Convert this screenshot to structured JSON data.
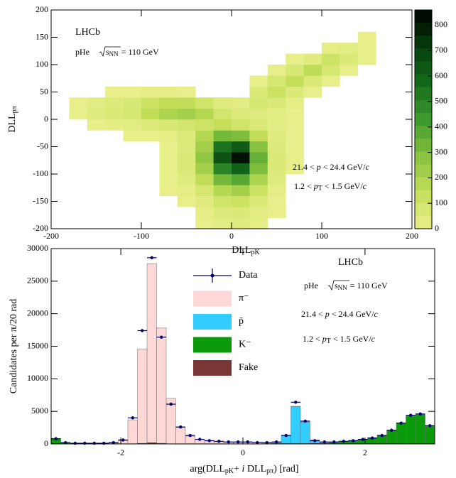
{
  "chart_data": [
    {
      "type": "heatmap",
      "xlabel": {
        "main": "DLL",
        "sub": "pK"
      },
      "ylabel": {
        "main": "DLL",
        "sub": "pπ"
      },
      "xlim": [
        -200,
        200
      ],
      "ylim": [
        -200,
        200
      ],
      "xticks": [
        -200,
        -100,
        0,
        100,
        200
      ],
      "yticks": [
        -200,
        -150,
        -100,
        -50,
        0,
        50,
        100,
        150,
        200
      ],
      "xbins": [
        -200,
        -180,
        -160,
        -140,
        -120,
        -100,
        -80,
        -60,
        -40,
        -20,
        0,
        20,
        40,
        60,
        80,
        100,
        120,
        140,
        160,
        180,
        200
      ],
      "ybins": [
        -200,
        -180,
        -160,
        -140,
        -120,
        -100,
        -80,
        -60,
        -40,
        -20,
        0,
        20,
        40,
        60,
        80,
        100,
        120,
        140,
        160,
        180,
        200
      ],
      "z": [
        [
          0,
          0,
          0,
          0,
          0,
          0,
          0,
          0,
          10,
          30,
          40,
          20,
          0,
          0,
          0,
          0,
          0,
          0,
          0,
          0
        ],
        [
          0,
          0,
          0,
          0,
          0,
          0,
          0,
          0,
          20,
          50,
          60,
          30,
          5,
          0,
          0,
          0,
          0,
          0,
          0,
          0
        ],
        [
          0,
          0,
          0,
          0,
          0,
          0,
          0,
          10,
          40,
          100,
          120,
          60,
          10,
          0,
          0,
          0,
          0,
          0,
          0,
          0
        ],
        [
          0,
          0,
          0,
          0,
          0,
          0,
          5,
          20,
          80,
          180,
          220,
          120,
          20,
          0,
          0,
          0,
          0,
          0,
          0,
          0
        ],
        [
          0,
          0,
          0,
          0,
          0,
          0,
          10,
          40,
          150,
          320,
          380,
          200,
          40,
          0,
          0,
          0,
          0,
          0,
          0,
          0
        ],
        [
          0,
          0,
          0,
          0,
          0,
          0,
          10,
          60,
          220,
          500,
          600,
          300,
          60,
          10,
          0,
          0,
          0,
          0,
          0,
          0
        ],
        [
          0,
          0,
          0,
          0,
          0,
          0,
          10,
          60,
          260,
          650,
          820,
          350,
          60,
          10,
          0,
          0,
          0,
          0,
          0,
          0
        ],
        [
          0,
          0,
          0,
          0,
          0,
          0,
          10,
          50,
          220,
          550,
          620,
          280,
          50,
          10,
          0,
          0,
          0,
          0,
          0,
          0
        ],
        [
          0,
          0,
          0,
          0,
          5,
          10,
          20,
          50,
          180,
          320,
          300,
          150,
          40,
          10,
          0,
          0,
          0,
          0,
          0,
          0
        ],
        [
          0,
          0,
          10,
          20,
          30,
          50,
          70,
          90,
          110,
          140,
          100,
          60,
          30,
          10,
          0,
          0,
          0,
          0,
          0,
          0
        ],
        [
          0,
          10,
          40,
          60,
          80,
          150,
          200,
          220,
          180,
          90,
          50,
          40,
          30,
          10,
          0,
          0,
          0,
          0,
          0,
          0
        ],
        [
          0,
          5,
          30,
          50,
          70,
          120,
          150,
          150,
          100,
          40,
          30,
          80,
          60,
          20,
          0,
          0,
          0,
          0,
          0,
          0
        ],
        [
          0,
          0,
          0,
          5,
          10,
          20,
          20,
          10,
          0,
          0,
          0,
          60,
          120,
          60,
          10,
          0,
          0,
          0,
          0,
          0
        ],
        [
          0,
          0,
          0,
          0,
          0,
          0,
          0,
          0,
          0,
          0,
          0,
          10,
          80,
          140,
          60,
          10,
          0,
          0,
          0,
          0
        ],
        [
          0,
          0,
          0,
          0,
          0,
          0,
          0,
          0,
          0,
          0,
          0,
          0,
          10,
          70,
          160,
          80,
          10,
          0,
          0,
          0
        ],
        [
          0,
          0,
          0,
          0,
          0,
          0,
          0,
          0,
          0,
          0,
          0,
          0,
          0,
          10,
          40,
          110,
          60,
          10,
          0,
          0
        ],
        [
          0,
          0,
          0,
          0,
          0,
          0,
          0,
          0,
          0,
          0,
          0,
          0,
          0,
          0,
          0,
          20,
          30,
          10,
          0,
          0
        ],
        [
          0,
          0,
          0,
          0,
          0,
          0,
          0,
          0,
          0,
          0,
          0,
          0,
          0,
          0,
          0,
          0,
          0,
          5,
          0,
          0
        ],
        [
          0,
          0,
          0,
          0,
          0,
          0,
          0,
          0,
          0,
          0,
          0,
          0,
          0,
          0,
          0,
          0,
          0,
          0,
          0,
          0
        ],
        [
          0,
          0,
          0,
          0,
          0,
          0,
          0,
          0,
          0,
          0,
          0,
          0,
          0,
          0,
          0,
          0,
          0,
          0,
          0,
          0
        ]
      ],
      "zlim": [
        0,
        860
      ],
      "zticks": [
        0,
        100,
        200,
        300,
        400,
        500,
        600,
        700,
        800
      ],
      "colormap": [
        "#e9f08c",
        "#c5df5a",
        "#86c23e",
        "#3f9a2e",
        "#146a1c",
        "#063d0c",
        "#000000"
      ],
      "annotations": {
        "experiment": "LHCb",
        "energy": {
          "system": "pHe",
          "root": "s",
          "sub": "NN",
          "value": "= 110 GeV"
        },
        "momentum": [
          "21.4 <  ",
          "p",
          "  < 24.4 GeV/",
          "c"
        ],
        "pt": [
          "1.2 <  ",
          "p",
          "T",
          "  < 1.5 GeV/",
          "c"
        ]
      }
    },
    {
      "type": "histogram",
      "xlabel": [
        "arg(DLL",
        "pK",
        "+  ",
        "i",
        " DLL",
        "pπ",
        ") [rad]"
      ],
      "ylabel": "Candidates per  π/20 rad",
      "xlim": [
        -3.1416,
        3.1416
      ],
      "ylim": [
        0,
        30000
      ],
      "xticks": [
        -2,
        0,
        2
      ],
      "yticks": [
        0,
        5000,
        10000,
        15000,
        20000,
        25000,
        30000
      ],
      "bins": [
        -3.1416,
        -2.9845,
        -2.8274,
        -2.6704,
        -2.5133,
        -2.3562,
        -2.1991,
        -2.042,
        -1.885,
        -1.7279,
        -1.5708,
        -1.4137,
        -1.2566,
        -1.0996,
        -0.9425,
        -0.7854,
        -0.6283,
        -0.4712,
        -0.3142,
        -0.1571,
        0,
        0.1571,
        0.3142,
        0.4712,
        0.6283,
        0.7854,
        0.9425,
        1.0996,
        1.2566,
        1.4137,
        1.5708,
        1.7279,
        1.885,
        2.042,
        2.1991,
        2.3562,
        2.5133,
        2.6704,
        2.8274,
        2.9845,
        3.1416
      ],
      "data": {
        "name": "Data",
        "color": "#000066",
        "values": [
          800,
          200,
          100,
          100,
          100,
          100,
          200,
          600,
          4000,
          17400,
          28600,
          16400,
          6100,
          2600,
          1300,
          700,
          500,
          400,
          300,
          300,
          300,
          200,
          200,
          300,
          1300,
          6400,
          3500,
          500,
          300,
          300,
          400,
          500,
          700,
          900,
          1300,
          2100,
          3200,
          4400,
          4600,
          2800
        ]
      },
      "series": [
        {
          "name": "π⁻",
          "color": "#fdd8d6",
          "values": [
            0,
            50,
            50,
            50,
            50,
            50,
            100,
            500,
            3700,
            14500,
            27500,
            17700,
            7000,
            2500,
            1200,
            700,
            450,
            350,
            280,
            250,
            220,
            180,
            150,
            100,
            50,
            30,
            20,
            20,
            20,
            20,
            10,
            10,
            10,
            10,
            10,
            0,
            0,
            0,
            0,
            0
          ]
        },
        {
          "name": "p̄",
          "color": "#33ccff",
          "values": [
            0,
            0,
            0,
            0,
            0,
            0,
            0,
            0,
            0,
            0,
            0,
            0,
            0,
            0,
            0,
            0,
            0,
            0,
            0,
            0,
            0,
            0,
            20,
            80,
            1200,
            5700,
            3300,
            500,
            150,
            80,
            40,
            20,
            10,
            0,
            0,
            0,
            0,
            0,
            0,
            0
          ]
        },
        {
          "name": "K⁻",
          "color": "#0a9a0a",
          "values": [
            800,
            150,
            80,
            50,
            50,
            50,
            50,
            30,
            0,
            0,
            0,
            0,
            0,
            0,
            0,
            0,
            0,
            0,
            0,
            0,
            0,
            20,
            30,
            50,
            50,
            50,
            60,
            80,
            100,
            200,
            350,
            500,
            700,
            950,
            1300,
            2100,
            3200,
            4300,
            4500,
            2700
          ]
        },
        {
          "name": "Fake",
          "color": "#7a3535",
          "values": [
            0,
            0,
            0,
            0,
            0,
            0,
            0,
            0,
            0,
            100,
            200,
            100,
            0,
            0,
            0,
            0,
            0,
            0,
            0,
            0,
            0,
            0,
            0,
            0,
            0,
            0,
            0,
            0,
            0,
            0,
            0,
            0,
            0,
            0,
            0,
            0,
            0,
            0,
            0,
            0
          ]
        }
      ],
      "annotations": {
        "experiment": "LHCb",
        "energy": {
          "system": "pHe",
          "root": "s",
          "sub": "NN",
          "value": "= 110 GeV"
        },
        "momentum": [
          "21.4 <  ",
          "p",
          "  < 24.4 GeV/",
          "c"
        ],
        "pt": [
          "1.2 <  ",
          "p",
          "T",
          "  < 1.5 GeV/",
          "c"
        ]
      }
    }
  ]
}
